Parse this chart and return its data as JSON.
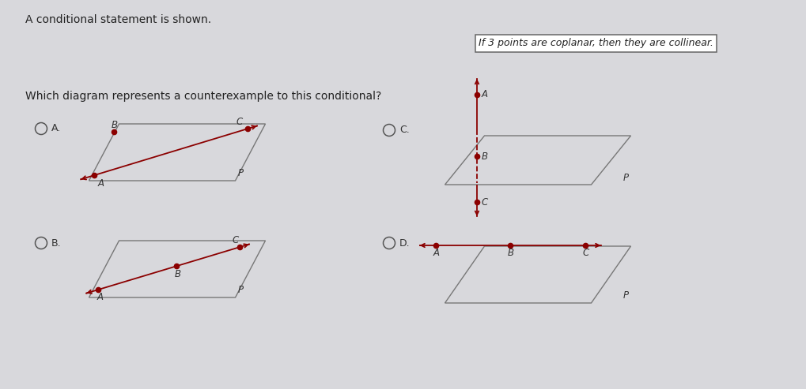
{
  "bg_color": "#d8d8dc",
  "title_text": "A conditional statement is shown.",
  "question_text": "Which diagram represents a counterexample to this conditional?",
  "box_text": "If 3 points are coplanar, then they are collinear.",
  "point_color": "#8b0000",
  "line_color": "#8b0000",
  "parallelogram_color": "#777777",
  "label_color": "#333333",
  "radio_color": "#555555",
  "figw": 10.2,
  "figh": 4.93
}
